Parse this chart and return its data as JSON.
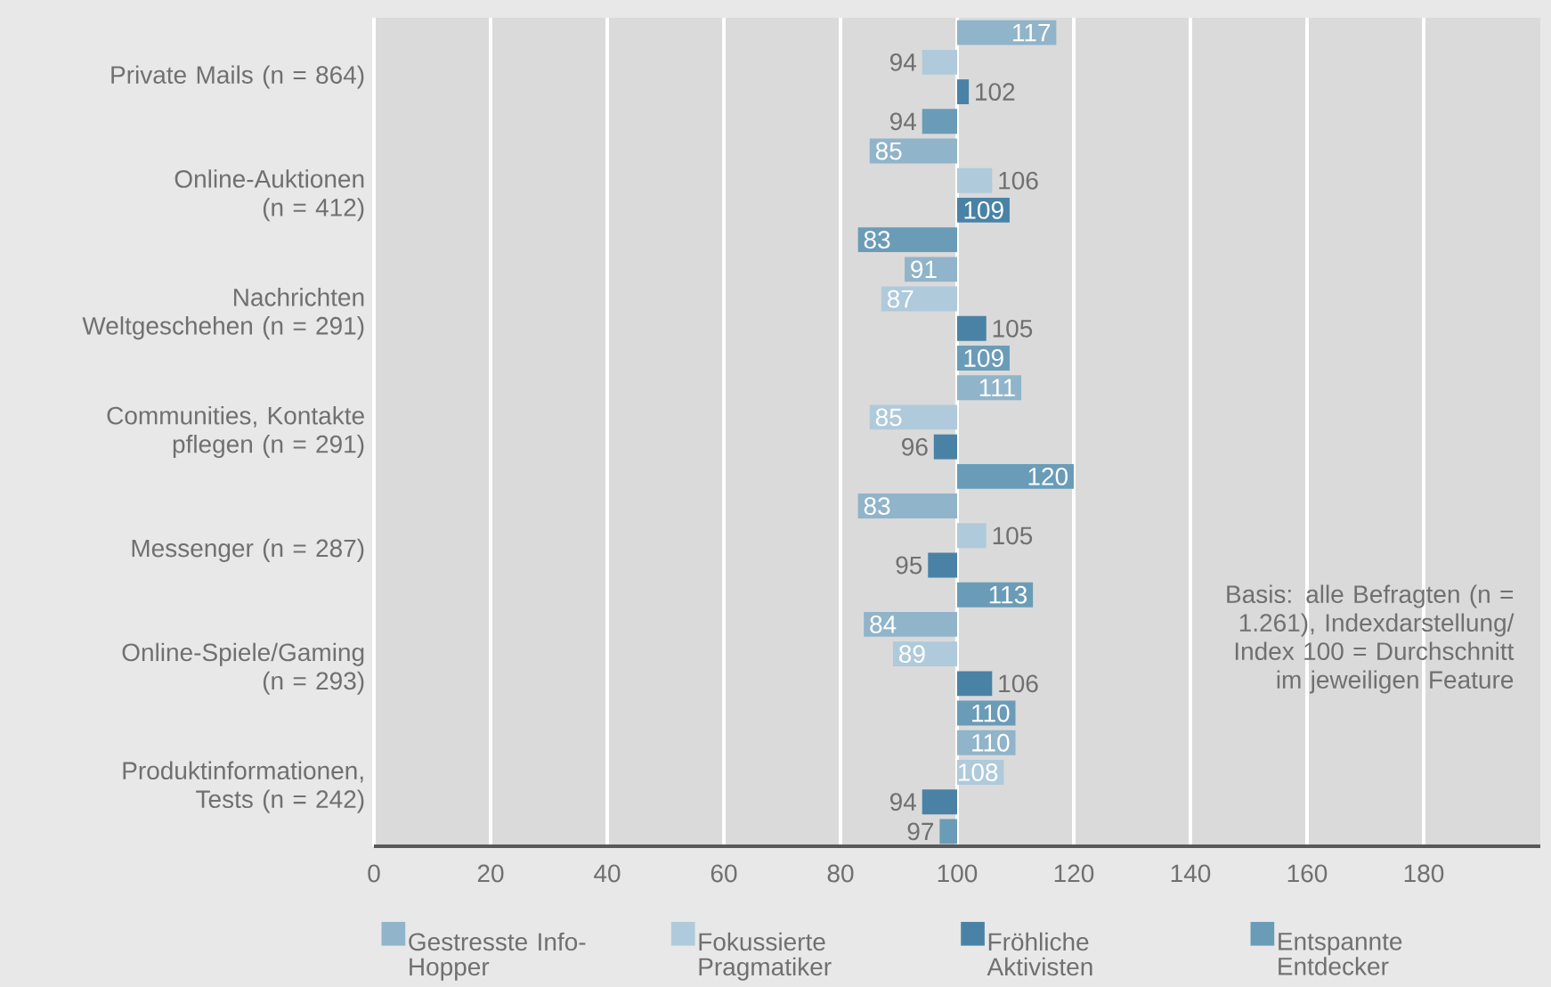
{
  "chart_data": {
    "type": "bar",
    "orientation": "horizontal",
    "categories": [
      "Private Mails (n = 864)",
      "Online-Auktionen (n = 412)",
      "Nachrichten Weltgeschehen (n = 291)",
      "Communities, Kontakte pflegen (n = 291)",
      "Messenger (n = 287)",
      "Online-Spiele/Gaming (n = 293)",
      "Produktinformationen, Tests (n = 242)"
    ],
    "series": [
      {
        "name": "Gestresste Info-Hopper",
        "color": "#90b4c9",
        "base": [
          100,
          100,
          100,
          100,
          100,
          100,
          100
        ],
        "values": [
          17,
          -15,
          -9,
          11,
          -17,
          -16,
          10
        ],
        "value_labels": [
          "117",
          "85",
          "91",
          "111",
          "83",
          "84",
          "110"
        ]
      },
      {
        "name": "Fokussierte Pragmatiker",
        "color": "#afcadb",
        "base": [
          100,
          100,
          100,
          100,
          100,
          100,
          100
        ],
        "values": [
          -6,
          6,
          -13,
          -15,
          5,
          -11,
          8
        ],
        "value_labels": [
          "94",
          "106",
          "87",
          "85",
          "105",
          "89",
          "108"
        ]
      },
      {
        "name": "Fröhliche Aktivisten",
        "color": "#4a82a6",
        "base": [
          100,
          100,
          100,
          100,
          100,
          100,
          100
        ],
        "values": [
          2,
          9,
          5,
          -4,
          -5,
          6,
          -6
        ],
        "value_labels": [
          "102",
          "109",
          "105",
          "96",
          "95",
          "106",
          "94"
        ]
      },
      {
        "name": "Entspannte Entdecker",
        "color": "#6a9cb8",
        "base": [
          100,
          100,
          100,
          100,
          100,
          100,
          100
        ],
        "values": [
          -6,
          -17,
          9,
          20,
          13,
          10,
          -3
        ],
        "value_labels": [
          "94",
          "83",
          "109",
          "120",
          "113",
          "110",
          "97"
        ]
      }
    ],
    "xlim": [
      0,
      200
    ],
    "xticks": [
      0,
      20,
      40,
      60,
      80,
      100,
      120,
      140,
      160,
      180
    ],
    "grid": "x",
    "legend": "bottom",
    "annotations": [
      "Basis: alle Befragten (n = 1.261), Indexdarstellung/ Index 100 = Durchschnitt im jeweiligen Feature"
    ]
  }
}
